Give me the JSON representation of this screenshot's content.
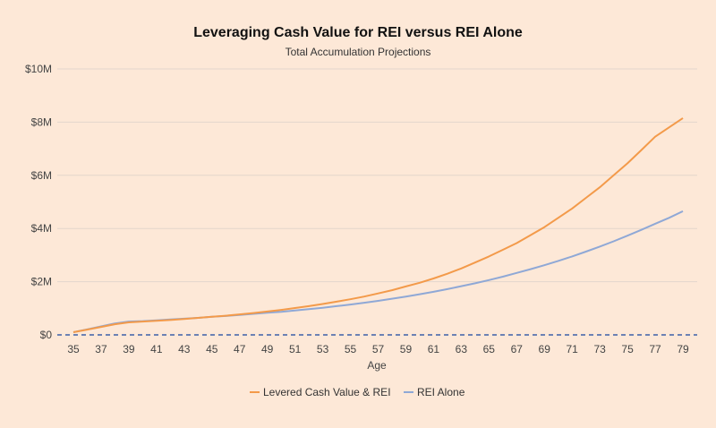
{
  "chart_data": {
    "type": "line",
    "title": "Leveraging Cash Value for REI versus REI Alone",
    "subtitle": "Total Accumulation Projections",
    "xlabel": "Age",
    "ylabel": "",
    "ylim": [
      0,
      10000000
    ],
    "y_ticks": [
      {
        "value": 0,
        "label": "$0"
      },
      {
        "value": 2000000,
        "label": "$2M"
      },
      {
        "value": 4000000,
        "label": "$4M"
      },
      {
        "value": 6000000,
        "label": "$6M"
      },
      {
        "value": 8000000,
        "label": "$8M"
      },
      {
        "value": 10000000,
        "label": "$10M"
      }
    ],
    "x": [
      35,
      36,
      37,
      38,
      39,
      40,
      41,
      42,
      43,
      44,
      45,
      46,
      47,
      48,
      49,
      50,
      51,
      52,
      53,
      54,
      55,
      56,
      57,
      58,
      59,
      60,
      61,
      62,
      63,
      64,
      65,
      66,
      67,
      68,
      69,
      70,
      71,
      72,
      73,
      74,
      75,
      76,
      77,
      78,
      79
    ],
    "x_tick_labels": [
      "35",
      "37",
      "39",
      "41",
      "43",
      "45",
      "47",
      "49",
      "51",
      "53",
      "55",
      "57",
      "59",
      "61",
      "63",
      "65",
      "67",
      "69",
      "71",
      "73",
      "75",
      "77",
      "79"
    ],
    "grid": true,
    "legend_position": "bottom",
    "series": [
      {
        "name": "Levered Cash Value & REI",
        "color": "#f39a4a",
        "values": [
          100000,
          200000,
          300000,
          400000,
          470000,
          500000,
          530000,
          560000,
          600000,
          640000,
          680000,
          720000,
          770000,
          820000,
          880000,
          940000,
          1010000,
          1080000,
          1160000,
          1250000,
          1340000,
          1440000,
          1560000,
          1680000,
          1820000,
          1960000,
          2120000,
          2300000,
          2500000,
          2720000,
          2950000,
          3200000,
          3450000,
          3750000,
          4050000,
          4400000,
          4750000,
          5150000,
          5550000,
          6000000,
          6450000,
          6950000,
          7450000,
          7800000,
          8150000
        ]
      },
      {
        "name": "REI Alone",
        "color": "#8fa8d6",
        "values": [
          100000,
          210000,
          320000,
          430000,
          500000,
          520000,
          550000,
          580000,
          610000,
          640000,
          680000,
          710000,
          750000,
          790000,
          830000,
          870000,
          920000,
          970000,
          1020000,
          1080000,
          1140000,
          1210000,
          1280000,
          1360000,
          1440000,
          1530000,
          1620000,
          1720000,
          1830000,
          1940000,
          2060000,
          2190000,
          2330000,
          2470000,
          2620000,
          2780000,
          2950000,
          3130000,
          3320000,
          3520000,
          3730000,
          3950000,
          4180000,
          4400000,
          4650000
        ]
      }
    ],
    "reference_line": {
      "value": 0,
      "color": "#3d5fa8",
      "style": "dashed"
    }
  }
}
